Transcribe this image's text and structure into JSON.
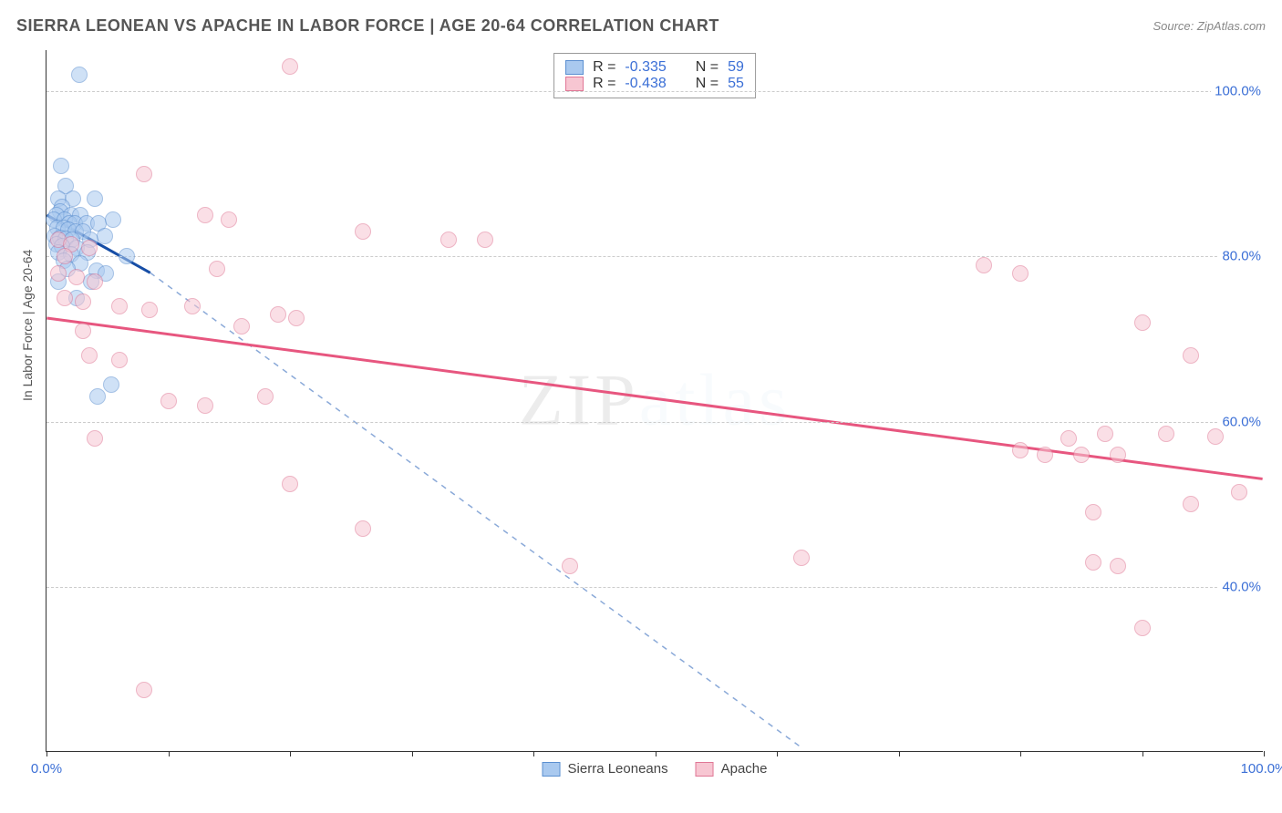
{
  "title": "SIERRA LEONEAN VS APACHE IN LABOR FORCE | AGE 20-64 CORRELATION CHART",
  "source": "Source: ZipAtlas.com",
  "ylabel": "In Labor Force | Age 20-64",
  "watermark": {
    "prefix": "ZIP",
    "suffix": "atlas"
  },
  "chart": {
    "type": "scatter",
    "background_color": "#ffffff",
    "grid_color": "#cccccc",
    "tick_color": "#3b6fd6",
    "tick_fontsize": 15,
    "xlim": [
      0,
      100
    ],
    "ylim": [
      20,
      105
    ],
    "xticks": [
      0,
      10,
      20,
      30,
      40,
      50,
      60,
      70,
      80,
      90,
      100
    ],
    "xtick_labels": {
      "0": "0.0%",
      "100": "100.0%"
    },
    "yticks": [
      40,
      60,
      80,
      100
    ],
    "ytick_labels": {
      "40": "40.0%",
      "60": "60.0%",
      "80": "80.0%",
      "100": "100.0%"
    },
    "marker_size": 18,
    "marker_opacity": 0.55,
    "series": [
      {
        "id": "sierra",
        "label": "Sierra Leoneans",
        "fill": "#a9c9ef",
        "stroke": "#5b8fd0",
        "line_color": "#174ea6",
        "dash_color": "#8aa9d8",
        "R": "-0.335",
        "N": "59",
        "trend": {
          "x1": 0,
          "y1": 85,
          "x2": 8.5,
          "y2": 78,
          "extrap_x2": 62,
          "extrap_y2": 20.5
        },
        "points": [
          [
            2.7,
            102
          ],
          [
            1.2,
            91
          ],
          [
            1.6,
            88.5
          ],
          [
            1.0,
            87
          ],
          [
            2.2,
            87
          ],
          [
            4.0,
            87
          ],
          [
            1.3,
            86
          ],
          [
            1.1,
            85.5
          ],
          [
            0.8,
            85
          ],
          [
            2.0,
            85
          ],
          [
            2.8,
            85
          ],
          [
            0.6,
            84.5
          ],
          [
            1.5,
            84.5
          ],
          [
            1.9,
            84
          ],
          [
            2.3,
            84
          ],
          [
            3.3,
            84
          ],
          [
            4.3,
            84
          ],
          [
            5.5,
            84.5
          ],
          [
            0.9,
            83.5
          ],
          [
            1.4,
            83.5
          ],
          [
            1.8,
            83.2
          ],
          [
            2.4,
            83
          ],
          [
            3.0,
            83
          ],
          [
            0.7,
            82.5
          ],
          [
            1.1,
            82.3
          ],
          [
            1.6,
            82.2
          ],
          [
            2.1,
            82
          ],
          [
            3.6,
            82
          ],
          [
            0.8,
            81.5
          ],
          [
            1.3,
            81.3
          ],
          [
            2.5,
            81
          ],
          [
            4.8,
            82.5
          ],
          [
            1.0,
            80.5
          ],
          [
            2.0,
            80.3
          ],
          [
            3.4,
            80.5
          ],
          [
            6.6,
            80
          ],
          [
            1.4,
            79.5
          ],
          [
            2.8,
            79.2
          ],
          [
            1.7,
            78.5
          ],
          [
            4.1,
            78.3
          ],
          [
            4.9,
            78
          ],
          [
            1.0,
            77
          ],
          [
            3.7,
            77
          ],
          [
            2.5,
            75
          ],
          [
            5.3,
            64.5
          ],
          [
            4.2,
            63
          ]
        ]
      },
      {
        "id": "apache",
        "label": "Apache",
        "fill": "#f7c6d2",
        "stroke": "#e07795",
        "line_color": "#e7567f",
        "R": "-0.438",
        "N": "55",
        "trend": {
          "x1": 0,
          "y1": 72.5,
          "x2": 100,
          "y2": 53
        },
        "points": [
          [
            20,
            103
          ],
          [
            8,
            90
          ],
          [
            1,
            82
          ],
          [
            2,
            81.5
          ],
          [
            3.5,
            81
          ],
          [
            1.5,
            80
          ],
          [
            13,
            85
          ],
          [
            15,
            84.5
          ],
          [
            26,
            83
          ],
          [
            33,
            82
          ],
          [
            36,
            82
          ],
          [
            1,
            78
          ],
          [
            2.5,
            77.5
          ],
          [
            4,
            77
          ],
          [
            14,
            78.5
          ],
          [
            77,
            79
          ],
          [
            80,
            78
          ],
          [
            1.5,
            75
          ],
          [
            3,
            74.5
          ],
          [
            6,
            74
          ],
          [
            8.5,
            73.5
          ],
          [
            12,
            74
          ],
          [
            19,
            73
          ],
          [
            20.5,
            72.5
          ],
          [
            90,
            72
          ],
          [
            3,
            71
          ],
          [
            16,
            71.5
          ],
          [
            94,
            68
          ],
          [
            3.5,
            68
          ],
          [
            6,
            67.5
          ],
          [
            10,
            62.5
          ],
          [
            13,
            62
          ],
          [
            18,
            63
          ],
          [
            84,
            58
          ],
          [
            87,
            58.5
          ],
          [
            92,
            58.5
          ],
          [
            96,
            58.2
          ],
          [
            4,
            58
          ],
          [
            80,
            56.5
          ],
          [
            82,
            56
          ],
          [
            85,
            56
          ],
          [
            88,
            56
          ],
          [
            20,
            52.5
          ],
          [
            98,
            51.5
          ],
          [
            86,
            49
          ],
          [
            94,
            50
          ],
          [
            26,
            47
          ],
          [
            88,
            42.5
          ],
          [
            62,
            43.5
          ],
          [
            43,
            42.5
          ],
          [
            86,
            43
          ],
          [
            90,
            35
          ],
          [
            8,
            27.5
          ]
        ]
      }
    ]
  },
  "stat_legend": {
    "r_prefix": "R = ",
    "n_prefix": "N = "
  },
  "series_legend": {
    "swatch_size": 20
  }
}
